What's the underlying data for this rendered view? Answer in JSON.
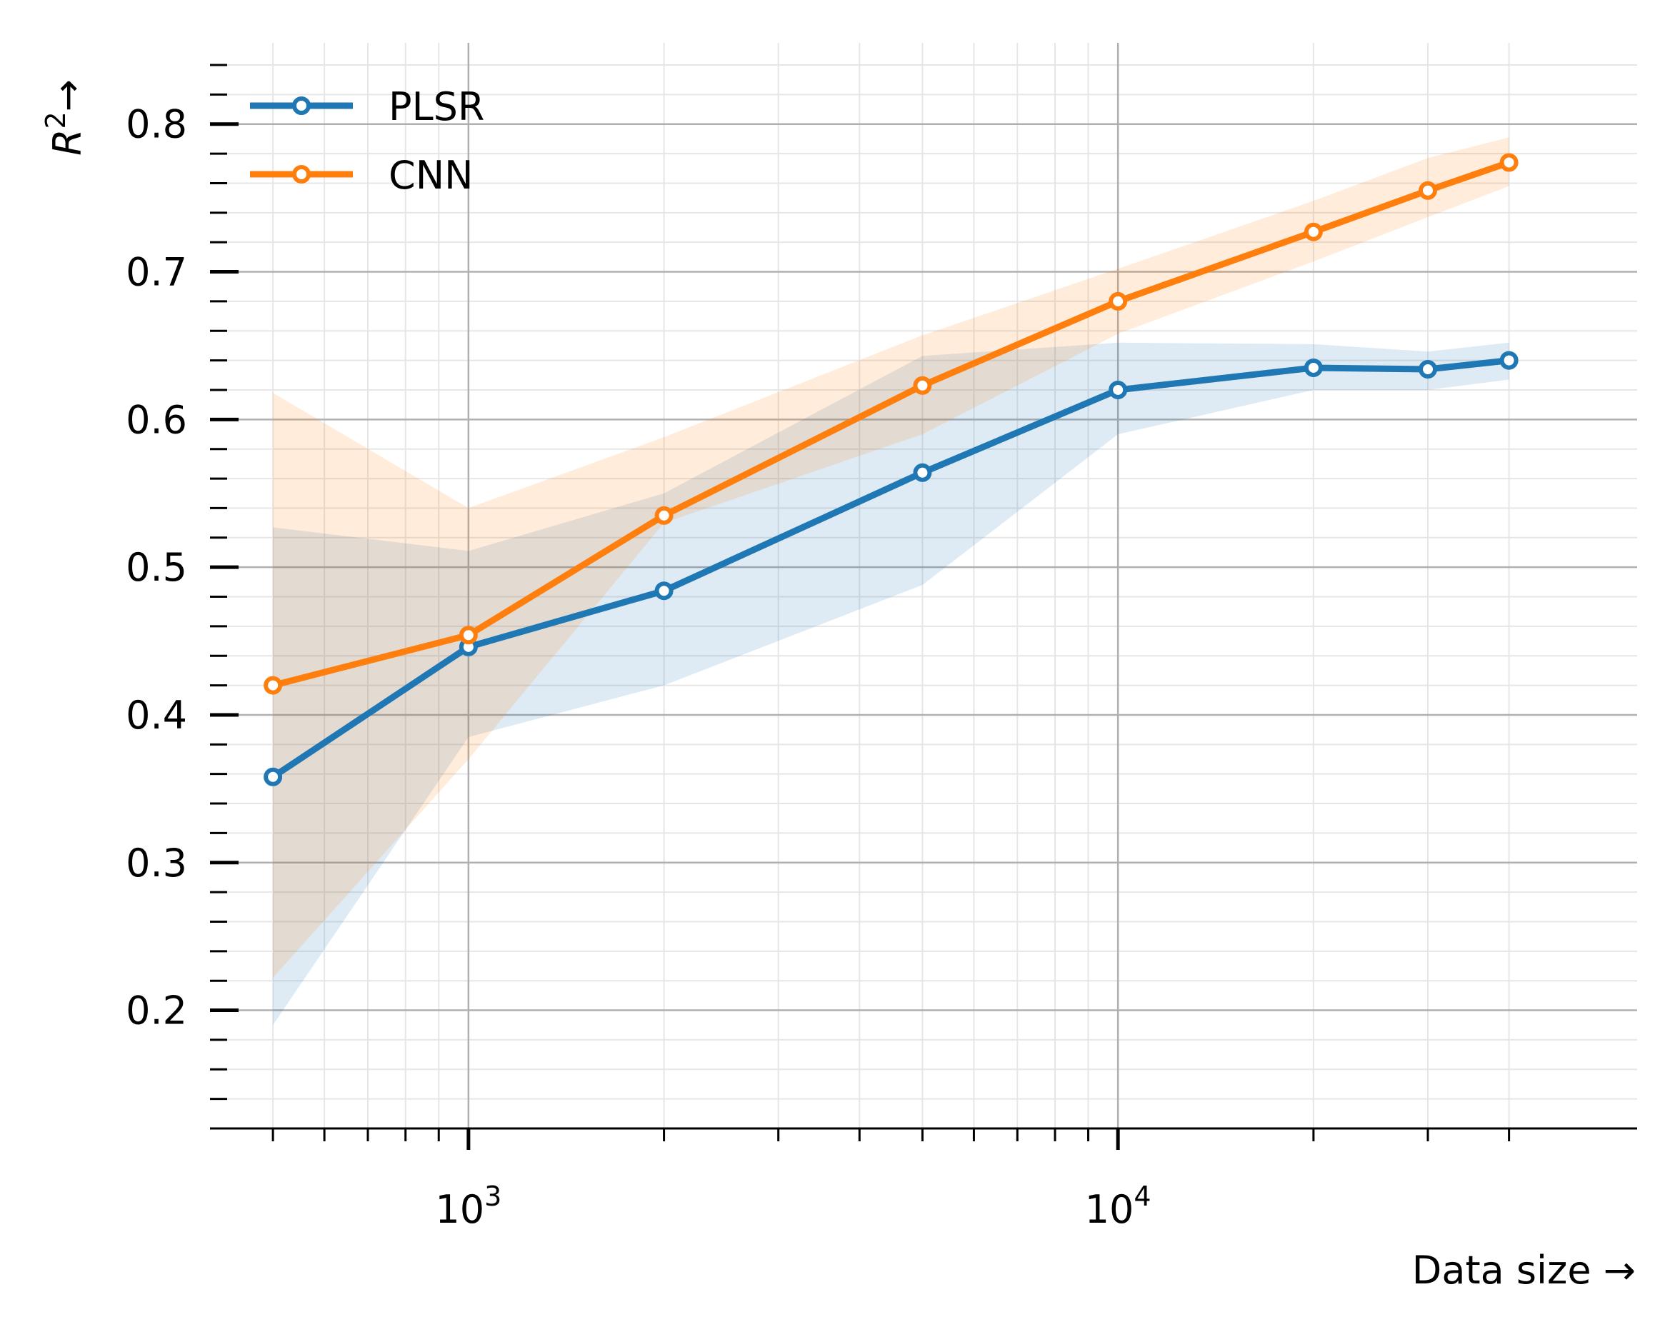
{
  "chart_data": {
    "type": "line",
    "x_scale": "log",
    "x": [
      500,
      1000,
      2000,
      5000,
      10000,
      20000,
      30000,
      40000
    ],
    "series": [
      {
        "name": "PLSR",
        "color": "#1f77b4",
        "values": [
          0.358,
          0.446,
          0.484,
          0.564,
          0.62,
          0.635,
          0.634,
          0.64
        ],
        "band_lower": [
          0.19,
          0.385,
          0.42,
          0.488,
          0.59,
          0.62,
          0.62,
          0.627
        ],
        "band_upper": [
          0.527,
          0.511,
          0.55,
          0.643,
          0.652,
          0.651,
          0.646,
          0.652
        ]
      },
      {
        "name": "CNN",
        "color": "#ff7f0e",
        "values": [
          0.42,
          0.454,
          0.535,
          0.623,
          0.68,
          0.727,
          0.755,
          0.774
        ],
        "band_lower": [
          0.222,
          0.37,
          0.53,
          0.59,
          0.658,
          0.707,
          0.737,
          0.758
        ],
        "band_upper": [
          0.618,
          0.54,
          0.588,
          0.657,
          0.702,
          0.748,
          0.777,
          0.791
        ]
      }
    ],
    "xlim": [
      400,
      63000
    ],
    "ylim": [
      0.12,
      0.855
    ],
    "x_major_ticks": [
      {
        "value": 1000,
        "base": "10",
        "exp": "3"
      },
      {
        "value": 10000,
        "base": "10",
        "exp": "4"
      }
    ],
    "x_minor_ticks": [
      500,
      600,
      700,
      800,
      900,
      2000,
      3000,
      4000,
      5000,
      6000,
      7000,
      8000,
      9000,
      20000,
      30000,
      40000
    ],
    "y_major_ticks": [
      {
        "value": 0.2,
        "label": "0.2"
      },
      {
        "value": 0.3,
        "label": "0.3"
      },
      {
        "value": 0.4,
        "label": "0.4"
      },
      {
        "value": 0.5,
        "label": "0.5"
      },
      {
        "value": 0.6,
        "label": "0.6"
      },
      {
        "value": 0.7,
        "label": "0.7"
      },
      {
        "value": 0.8,
        "label": "0.8"
      }
    ],
    "y_minor_step": 0.02,
    "xlabel": "Data size →",
    "ylabel": {
      "base": "R",
      "exp": "2",
      "arrow": "→"
    },
    "grid": true,
    "legend_position": "top-left",
    "colors": {
      "major_grid": "#b0b0b0",
      "minor_grid": "#e6e6e6",
      "axis": "#000000",
      "marker_fill": "#ffffff"
    }
  }
}
